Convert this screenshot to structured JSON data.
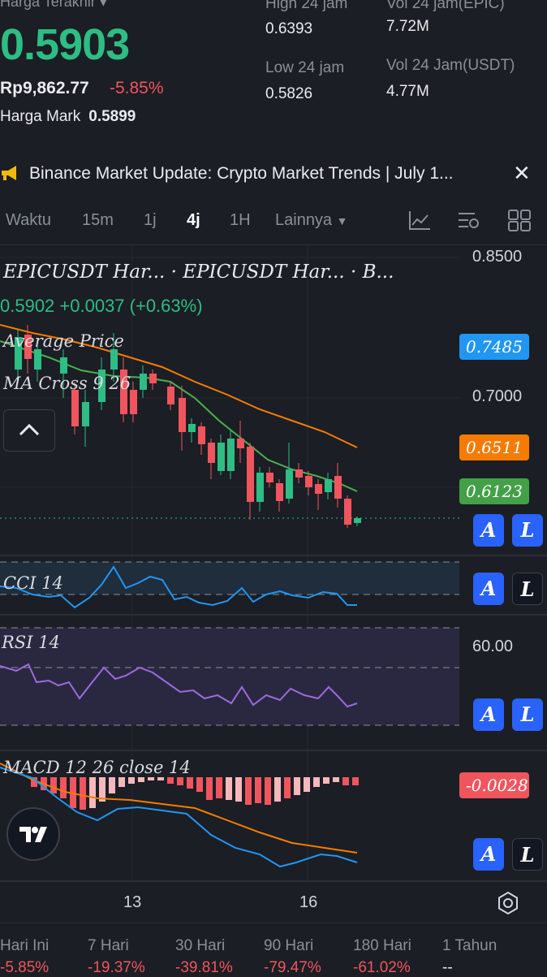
{
  "ticker": {
    "last_label": "Harga Terakhir",
    "last_price": "0.5903",
    "idr_price": "Rp9,862.77",
    "change_pct": "-5.85%",
    "mark_label": "Harga Mark",
    "mark_price": "0.5899",
    "high_label": "High 24 jam",
    "high_value": "0.6393",
    "low_label": "Low 24 jam",
    "low_value": "0.5826",
    "vol_base_label": "Vol 24 jam(EPIC)",
    "vol_base_value": "7.72M",
    "vol_quote_label": "Vol 24 Jam(USDT)",
    "vol_quote_value": "4.77M"
  },
  "banner": {
    "text": "Binance Market Update: Crypto Market Trends | July 1...",
    "icon": "megaphone-icon"
  },
  "toolbar": {
    "time_label": "Waktu",
    "intervals": [
      "15m",
      "1j",
      "4j",
      "1H"
    ],
    "active_interval": "4j",
    "more_label": "Lainnya",
    "icons": [
      "indicator-icon",
      "chart-settings-icon",
      "layout-grid-icon"
    ]
  },
  "chart": {
    "symbol_line": "EPICUSDT  Har...  · EPICUSDT  Har...  · B...",
    "ohlc_line": "0.5902  +0.0037  (+0.63%)",
    "overlay_avg": "Average  Price",
    "overlay_ma": "MA  Cross  9  26",
    "price_axis": [
      "0.8500",
      "0.7000",
      "60.00"
    ],
    "tag_avg": "0.7485",
    "tag_ma_slow": "0.6511",
    "tag_ma_fast": "0.6123",
    "tag_macd": "-0.0028",
    "cci_label": "CCI  14",
    "rsi_label": "RSI  14",
    "macd_label": "MACD  12  26  close  14",
    "x_labels": [
      "13",
      "16"
    ],
    "btn_a": "A",
    "btn_l": "L",
    "colors": {
      "up": "#2ebd85",
      "down": "#f0555e",
      "ma_fast": "#4caf50",
      "ma_slow": "#f57c00",
      "avg_tag": "#2196f3",
      "cci_line": "#2196f3",
      "rsi_line": "#9c6ade"
    }
  },
  "periods": [
    {
      "label": "Hari Ini",
      "value": "-5.85%"
    },
    {
      "label": "7 Hari",
      "value": "-19.37%"
    },
    {
      "label": "30 Hari",
      "value": "-39.81%"
    },
    {
      "label": "90 Hari",
      "value": "-79.47%"
    },
    {
      "label": "180 Hari",
      "value": "-61.02%"
    },
    {
      "label": "1 Tahun",
      "value": "--"
    }
  ]
}
